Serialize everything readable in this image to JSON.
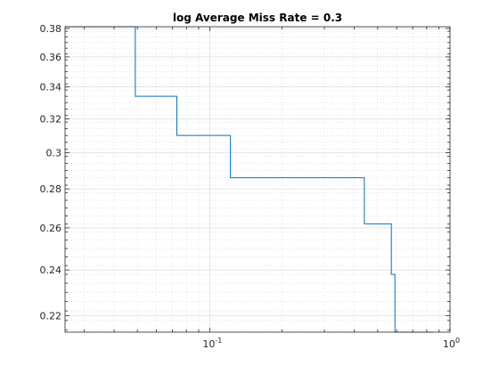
{
  "chart_data": {
    "type": "line",
    "title": "log Average Miss Rate = 0.3",
    "xlabel": "",
    "ylabel": "",
    "xscale": "log",
    "yscale": "log",
    "xlim": [
      0.025,
      1.0
    ],
    "ylim": [
      0.2132,
      0.3813
    ],
    "grid": true,
    "x_ticks": [
      {
        "value": 0.1,
        "base": "10",
        "exp": "-1"
      },
      {
        "value": 1.0,
        "base": "10",
        "exp": "0"
      }
    ],
    "y_ticks": [
      {
        "value": 0.22,
        "label": "0.22"
      },
      {
        "value": 0.24,
        "label": "0.24"
      },
      {
        "value": 0.26,
        "label": "0.26"
      },
      {
        "value": 0.28,
        "label": "0.28"
      },
      {
        "value": 0.3,
        "label": "0.3"
      },
      {
        "value": 0.32,
        "label": "0.32"
      },
      {
        "value": 0.34,
        "label": "0.34"
      },
      {
        "value": 0.36,
        "label": "0.36"
      },
      {
        "value": 0.38,
        "label": "0.38"
      }
    ],
    "series": [
      {
        "color": "#0072bd",
        "step": true,
        "x": [
          0.025,
          0.049,
          0.049,
          0.073,
          0.073,
          0.122,
          0.122,
          0.44,
          0.44,
          0.57,
          0.57,
          0.59,
          0.59,
          0.85
        ],
        "y": [
          0.3813,
          0.3813,
          0.334,
          0.334,
          0.31,
          0.31,
          0.286,
          0.286,
          0.262,
          0.262,
          0.238,
          0.238,
          0.2132,
          0.2132
        ]
      }
    ]
  }
}
